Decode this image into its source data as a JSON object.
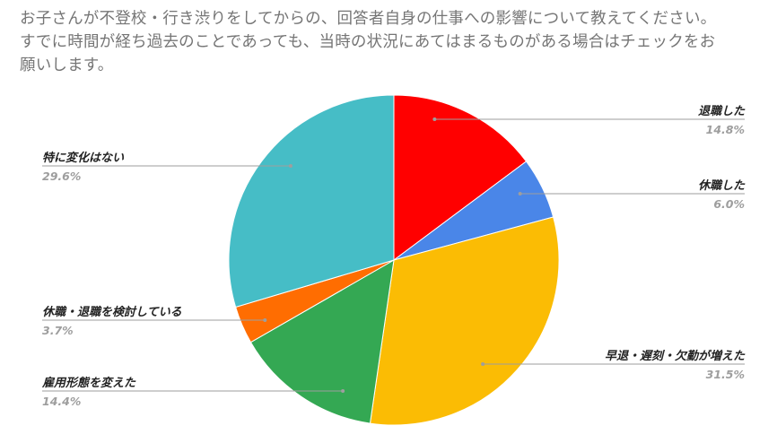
{
  "title_lines": [
    "お子さんが不登校・行き渋りをしてからの、回答者自身の仕事への影響について教えてください。",
    "すでに時間が経ち過去のことであっても、当時の状況にあてはまるものがある場合はチェックをお",
    "願いします。"
  ],
  "chart_data": {
    "type": "pie",
    "title": "お子さんが不登校・行き渋りをしてからの、回答者自身の仕事への影響について教えてください。すでに時間が経ち過去のことであっても、当時の状況にあてはまるものがある場合はチェックをお願いします。",
    "start": "12 o'clock",
    "direction": "clockwise",
    "slices": [
      {
        "label": "退職した",
        "value": 14.8,
        "display": "14.8%",
        "color": "#ff0000"
      },
      {
        "label": "休職した",
        "value": 6.0,
        "display": "6.0%",
        "color": "#4a86e8"
      },
      {
        "label": "早退・遅刻・欠勤が増えた",
        "value": 31.5,
        "display": "31.5%",
        "color": "#fbbc04"
      },
      {
        "label": "雇用形態を変えた",
        "value": 14.4,
        "display": "14.4%",
        "color": "#34a853"
      },
      {
        "label": "休職・退職を検討している",
        "value": 3.7,
        "display": "3.7%",
        "color": "#ff6d01"
      },
      {
        "label": "特に変化はない",
        "value": 29.6,
        "display": "29.6%",
        "color": "#46bdc6"
      }
    ],
    "label_style": "callout lines with name and percentage"
  }
}
